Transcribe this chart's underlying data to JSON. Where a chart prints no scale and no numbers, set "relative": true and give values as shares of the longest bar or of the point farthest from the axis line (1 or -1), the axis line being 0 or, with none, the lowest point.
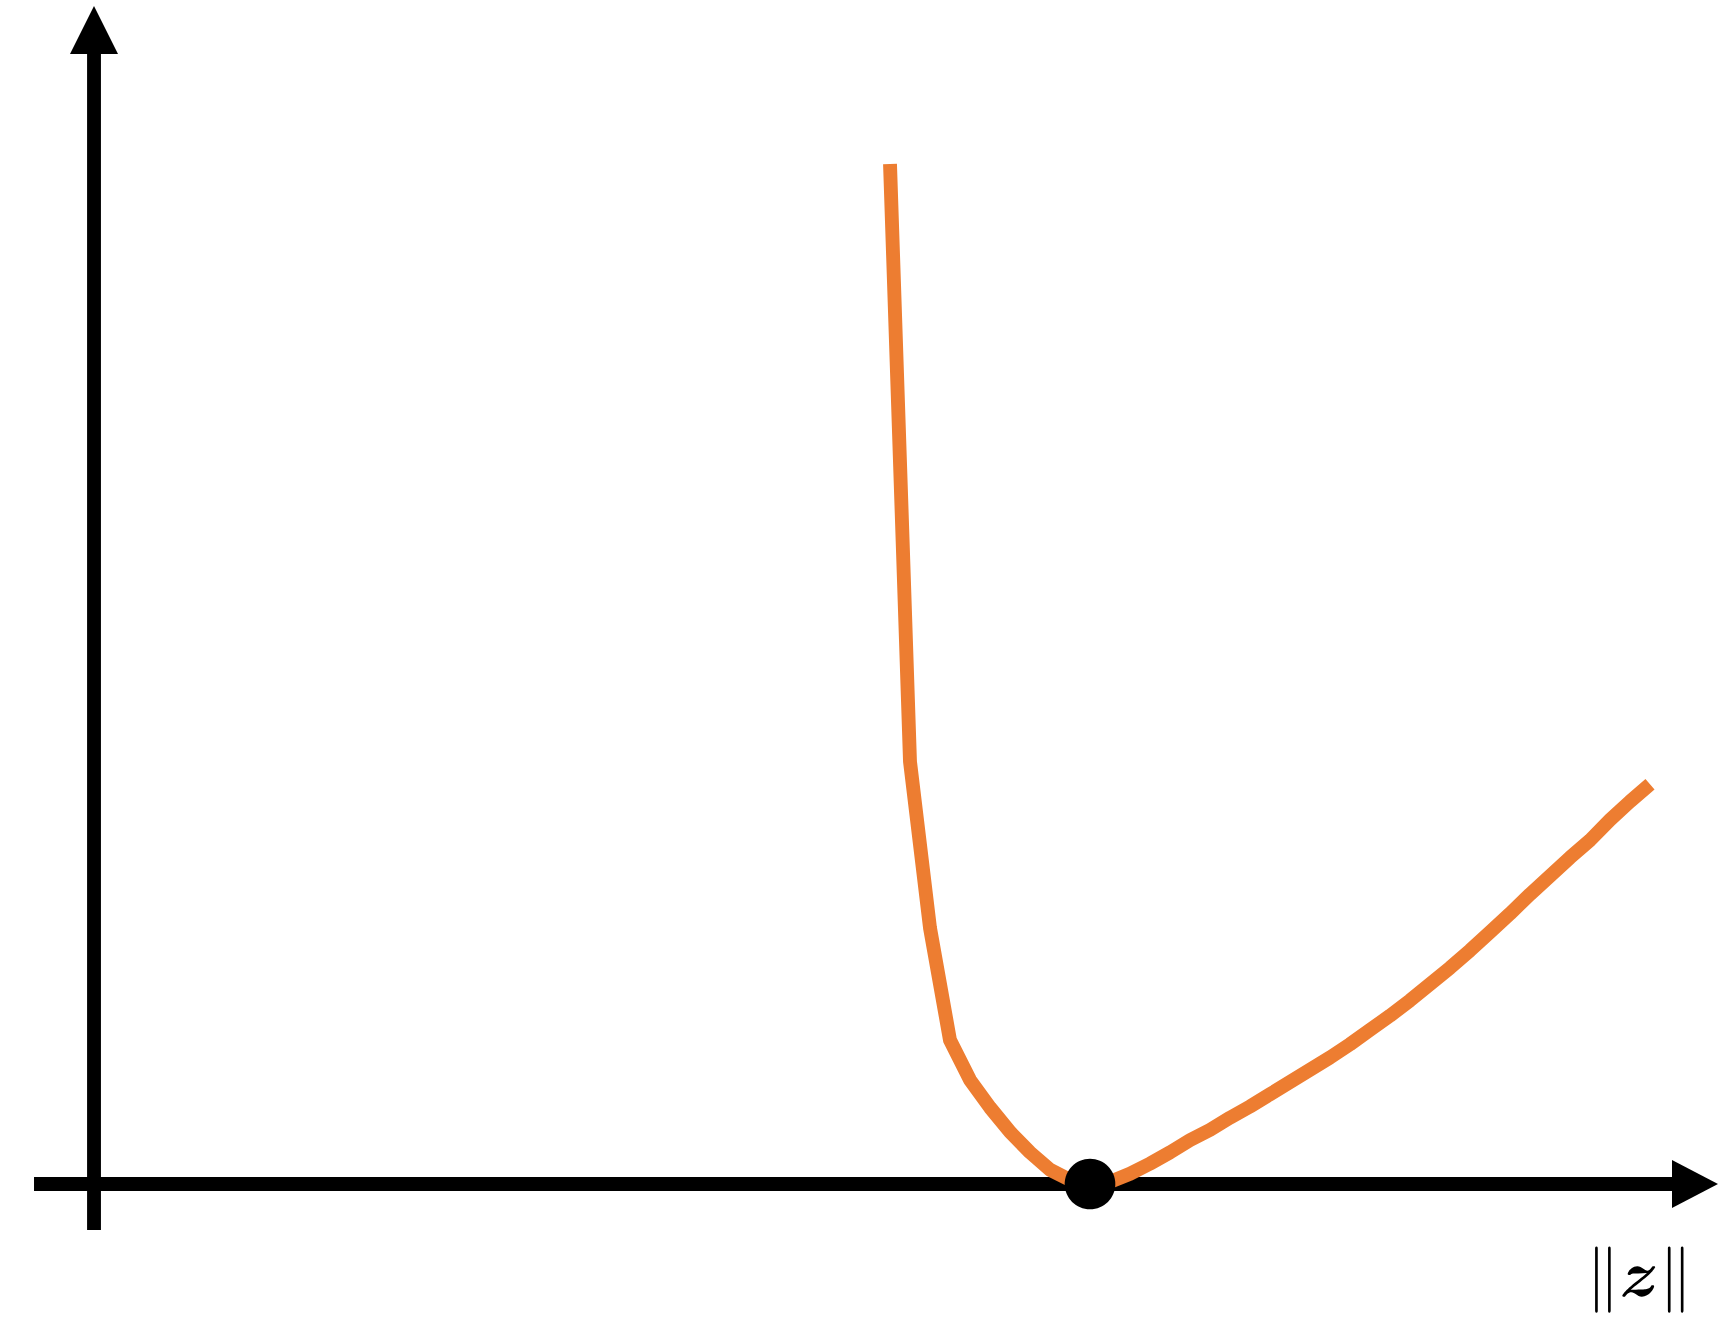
{
  "chart_data": {
    "type": "line",
    "relative": true,
    "xlabel": "\\|\\boldsymbol{z}\\|",
    "categories": [
      null,
      null,
      null,
      null,
      null,
      null,
      null,
      null,
      null,
      null,
      null,
      null,
      null,
      null,
      null,
      null,
      null,
      null,
      null,
      null,
      null,
      null,
      null,
      null,
      null,
      null,
      null,
      null,
      null,
      null,
      null,
      null,
      null,
      null,
      null,
      null,
      null,
      null,
      null
    ],
    "series": [
      {
        "color": "#ed7d31",
        "values": [
          1.0,
          0.414,
          0.251,
          0.141,
          0.102,
          0.075,
          0.051,
          0.031,
          0.014,
          0.004,
          0.0,
          0.002,
          0.01,
          0.02,
          0.031,
          0.043,
          0.053,
          0.065,
          0.076,
          0.088,
          0.1,
          0.112,
          0.124,
          0.137,
          0.151,
          0.165,
          0.18,
          0.196,
          0.212,
          0.229,
          0.247,
          0.265,
          0.284,
          0.302,
          0.32,
          0.337,
          0.357,
          0.375,
          0.392
        ]
      }
    ]
  }
}
